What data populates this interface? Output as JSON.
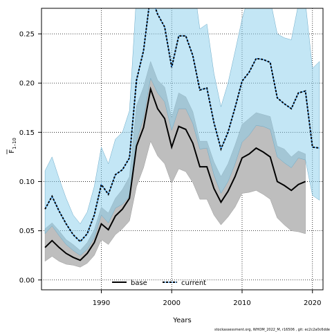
{
  "chart_data": {
    "type": "area",
    "xlabel": "Years",
    "ylabel_main": "F",
    "ylabel_sub": "1–10",
    "xlim": [
      1981.5,
      2021.5
    ],
    "ylim": [
      -0.01,
      0.276
    ],
    "x_ticks": [
      1990,
      2000,
      2010,
      2020
    ],
    "y_ticks": [
      0.0,
      0.05,
      0.1,
      0.15,
      0.2,
      0.25
    ],
    "y_tick_labels": [
      "0.00",
      "0.05",
      "0.10",
      "0.15",
      "0.20",
      "0.25"
    ],
    "grid": true,
    "legend_position": "bottom-center",
    "footer": "stockassessment.org, WHOM_2022_M, r16506 , git: ec2c2a0c6dde",
    "colors": {
      "base_band": "#bebebe",
      "current_band": "#87ceeb",
      "line": "#000000"
    },
    "series": [
      {
        "name": "base",
        "style": "solid",
        "x": [
          1982,
          1983,
          1984,
          1985,
          1986,
          1987,
          1988,
          1989,
          1990,
          1991,
          1992,
          1993,
          1994,
          1995,
          1996,
          1997,
          1998,
          1999,
          2000,
          2001,
          2002,
          2003,
          2004,
          2005,
          2006,
          2007,
          2008,
          2009,
          2010,
          2011,
          2012,
          2013,
          2014,
          2015,
          2016,
          2017,
          2018,
          2019
        ],
        "y": [
          0.033,
          0.04,
          0.033,
          0.027,
          0.023,
          0.02,
          0.027,
          0.038,
          0.057,
          0.051,
          0.065,
          0.072,
          0.083,
          0.136,
          0.155,
          0.194,
          0.174,
          0.164,
          0.135,
          0.156,
          0.153,
          0.139,
          0.115,
          0.115,
          0.093,
          0.079,
          0.09,
          0.105,
          0.124,
          0.128,
          0.134,
          0.13,
          0.125,
          0.1,
          0.096,
          0.091,
          0.097,
          0.1
        ],
        "lower": [
          0.019,
          0.024,
          0.019,
          0.016,
          0.015,
          0.013,
          0.017,
          0.025,
          0.041,
          0.036,
          0.046,
          0.052,
          0.06,
          0.095,
          0.114,
          0.141,
          0.126,
          0.118,
          0.098,
          0.113,
          0.11,
          0.099,
          0.082,
          0.082,
          0.066,
          0.056,
          0.064,
          0.074,
          0.088,
          0.089,
          0.091,
          0.087,
          0.082,
          0.063,
          0.056,
          0.05,
          0.049,
          0.047
        ],
        "upper": [
          0.052,
          0.058,
          0.05,
          0.041,
          0.036,
          0.03,
          0.038,
          0.051,
          0.074,
          0.068,
          0.083,
          0.092,
          0.105,
          0.177,
          0.196,
          0.222,
          0.203,
          0.196,
          0.165,
          0.19,
          0.186,
          0.171,
          0.141,
          0.141,
          0.12,
          0.105,
          0.118,
          0.137,
          0.158,
          0.164,
          0.17,
          0.168,
          0.166,
          0.136,
          0.133,
          0.125,
          0.131,
          0.128
        ]
      },
      {
        "name": "current",
        "style": "dashed",
        "x": [
          1982,
          1983,
          1984,
          1985,
          1986,
          1987,
          1988,
          1989,
          1990,
          1991,
          1992,
          1993,
          1994,
          1995,
          1996,
          1997,
          1998,
          1999,
          2000,
          2001,
          2002,
          2003,
          2004,
          2005,
          2006,
          2007,
          2008,
          2009,
          2010,
          2011,
          2012,
          2013,
          2014,
          2015,
          2016,
          2017,
          2018,
          2019,
          2020,
          2021
        ],
        "y": [
          0.072,
          0.085,
          0.07,
          0.057,
          0.046,
          0.039,
          0.047,
          0.066,
          0.097,
          0.087,
          0.107,
          0.112,
          0.124,
          0.203,
          0.233,
          0.29,
          0.27,
          0.257,
          0.216,
          0.248,
          0.248,
          0.228,
          0.193,
          0.195,
          0.16,
          0.133,
          0.15,
          0.175,
          0.202,
          0.211,
          0.225,
          0.224,
          0.221,
          0.185,
          0.179,
          0.174,
          0.19,
          0.192,
          0.135,
          0.134
        ],
        "lower": [
          0.047,
          0.055,
          0.045,
          0.036,
          0.03,
          0.025,
          0.031,
          0.043,
          0.066,
          0.058,
          0.073,
          0.077,
          0.085,
          0.141,
          0.165,
          0.205,
          0.19,
          0.181,
          0.152,
          0.174,
          0.174,
          0.159,
          0.133,
          0.134,
          0.107,
          0.088,
          0.1,
          0.118,
          0.14,
          0.147,
          0.157,
          0.156,
          0.153,
          0.125,
          0.119,
          0.114,
          0.124,
          0.122,
          0.086,
          0.081
        ],
        "upper": [
          0.111,
          0.125,
          0.103,
          0.083,
          0.066,
          0.057,
          0.069,
          0.095,
          0.135,
          0.118,
          0.143,
          0.15,
          0.172,
          0.29,
          0.33,
          0.41,
          0.38,
          0.36,
          0.3,
          0.345,
          0.335,
          0.308,
          0.255,
          0.26,
          0.21,
          0.176,
          0.2,
          0.232,
          0.265,
          0.29,
          0.3,
          0.29,
          0.285,
          0.25,
          0.246,
          0.244,
          0.28,
          0.282,
          0.215,
          0.222
        ]
      }
    ]
  }
}
